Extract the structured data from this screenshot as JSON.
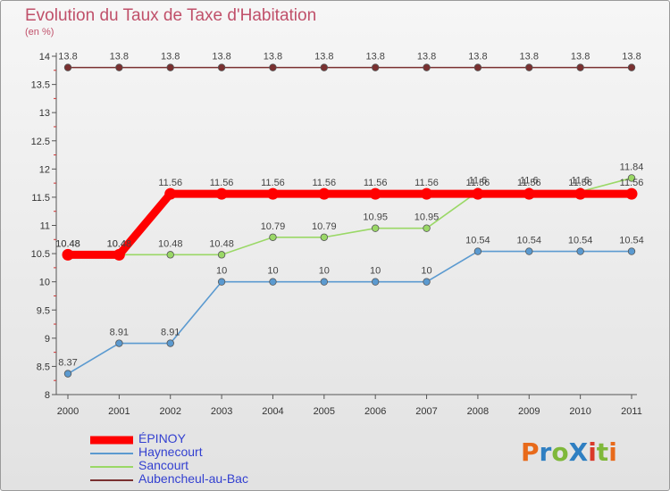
{
  "title": "Evolution du Taux de Taxe d'Habitation",
  "unit": "(en %)",
  "brand": {
    "text": "ProXiti",
    "colors": [
      "#e86a1a",
      "#2f7fc2",
      "#7fb83a",
      "#2f7fc2",
      "#d93a2a",
      "#7fb83a",
      "#e86a1a"
    ]
  },
  "chart_data": {
    "type": "line",
    "x": [
      "2000",
      "2001",
      "2002",
      "2003",
      "2004",
      "2005",
      "2006",
      "2007",
      "2008",
      "2009",
      "2010",
      "2011"
    ],
    "ylim": [
      8,
      14
    ],
    "yticks": [
      "8",
      "8.5",
      "9",
      "9.5",
      "10",
      "10.5",
      "11",
      "11.5",
      "12",
      "12.5",
      "13",
      "13.5",
      "14"
    ],
    "series": [
      {
        "name": "Aubencheul-au-Bac",
        "color": "#7a3030",
        "values": [
          13.8,
          13.8,
          13.8,
          13.8,
          13.8,
          13.8,
          13.8,
          13.8,
          13.8,
          13.8,
          13.8,
          13.8
        ],
        "labels": [
          "13.8",
          "13.8",
          "13.8",
          "13.8",
          "13.8",
          "13.8",
          "13.8",
          "13.8",
          "13.8",
          "13.8",
          "13.8",
          "13.8"
        ]
      },
      {
        "name": "Haynecourt",
        "color": "#5b9ad0",
        "values": [
          8.37,
          8.91,
          8.91,
          10,
          10,
          10,
          10,
          10,
          10.54,
          10.54,
          10.54,
          10.54
        ],
        "labels": [
          "8.37",
          "8.91",
          "8.91",
          "10",
          "10",
          "10",
          "10",
          "10",
          "10.54",
          "10.54",
          "10.54",
          "10.54"
        ]
      },
      {
        "name": "Sancourt",
        "color": "#9ad866",
        "values": [
          10.48,
          10.48,
          10.48,
          10.48,
          10.79,
          10.79,
          10.95,
          10.95,
          11.6,
          11.6,
          11.6,
          11.84
        ],
        "labels": [
          "10.48",
          "10.48",
          "10.48",
          "10.48",
          "10.79",
          "10.79",
          "10.95",
          "10.95",
          "11.6",
          "11.6",
          "11.6",
          "11.84"
        ]
      },
      {
        "name": "ÉPINOY",
        "color": "#ff0000",
        "values": [
          10.48,
          10.48,
          11.56,
          11.56,
          11.56,
          11.56,
          11.56,
          11.56,
          11.56,
          11.56,
          11.56,
          11.56
        ],
        "labels": [
          "10.48",
          "10.48",
          "11.56",
          "11.56",
          "11.56",
          "11.56",
          "11.56",
          "11.56",
          "11.56",
          "11.56",
          "11.56",
          "11.56"
        ]
      }
    ],
    "legend": [
      {
        "name": "ÉPINOY",
        "color": "#ff0000"
      },
      {
        "name": "Haynecourt",
        "color": "#5b9ad0"
      },
      {
        "name": "Sancourt",
        "color": "#9ad866"
      },
      {
        "name": "Aubencheul-au-Bac",
        "color": "#7a3030"
      }
    ]
  }
}
